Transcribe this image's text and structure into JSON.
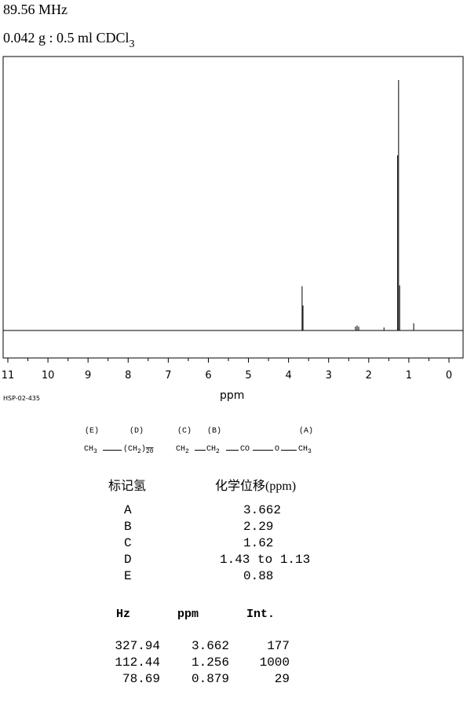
{
  "header": {
    "frequency": "89.56 MHz",
    "sample_main": "0.042 g : 0.5 ml CDCl",
    "sample_sub": "3"
  },
  "spectrum": {
    "code": "HSP-02-435",
    "xlabel": "ppm",
    "tick_labels": [
      "11",
      "10",
      "9",
      "8",
      "7",
      "6",
      "5",
      "4",
      "3",
      "2",
      "1",
      "0"
    ]
  },
  "chart_data": {
    "type": "line",
    "title": "",
    "xlabel": "ppm",
    "ylabel": "",
    "xlim": [
      11,
      0
    ],
    "x_reversed": true,
    "ylim": [
      0,
      1000
    ],
    "grid": false,
    "series": [
      {
        "peaks": [
          {
            "ppm": 3.662,
            "intensity": 177
          },
          {
            "ppm": 3.64,
            "intensity": 100
          },
          {
            "ppm": 2.33,
            "intensity": 16
          },
          {
            "ppm": 2.29,
            "intensity": 20
          },
          {
            "ppm": 2.25,
            "intensity": 15
          },
          {
            "ppm": 1.62,
            "intensity": 12
          },
          {
            "ppm": 1.28,
            "intensity": 700
          },
          {
            "ppm": 1.256,
            "intensity": 1000
          },
          {
            "ppm": 1.23,
            "intensity": 180
          },
          {
            "ppm": 0.879,
            "intensity": 29
          }
        ]
      }
    ]
  },
  "structure": {
    "labels": [
      "(E)",
      "(D)",
      "(C)",
      "(B)",
      "(A)"
    ],
    "ch3_left": "CH",
    "ch3_left_sub": "3",
    "ch2_group": "(CH",
    "ch2_group_sub": "2",
    "ch2_group_close": ")",
    "ch2_group_n": "20",
    "ch2_c": "CH",
    "ch2_c_sub": "2",
    "ch2_b": "CH",
    "ch2_b_sub": "2",
    "co": "CO",
    "o": "O",
    "ch3_right": "CH",
    "ch3_right_sub": "3"
  },
  "assignment_table": {
    "header_label": "标记氢",
    "header_shift": "化学位移(ppm)",
    "rows": [
      {
        "label": "A",
        "shift": "3.662"
      },
      {
        "label": "B",
        "shift": "2.29"
      },
      {
        "label": "C",
        "shift": "1.62"
      },
      {
        "label": "D",
        "shift": "1.43 to 1.13"
      },
      {
        "label": "E",
        "shift": "0.88"
      }
    ]
  },
  "peak_table": {
    "headers": [
      "Hz",
      "ppm",
      "Int."
    ],
    "rows": [
      [
        "327.94",
        "3.662",
        "177"
      ],
      [
        "112.44",
        "1.256",
        "1000"
      ],
      [
        "78.69",
        "0.879",
        "29"
      ]
    ]
  }
}
